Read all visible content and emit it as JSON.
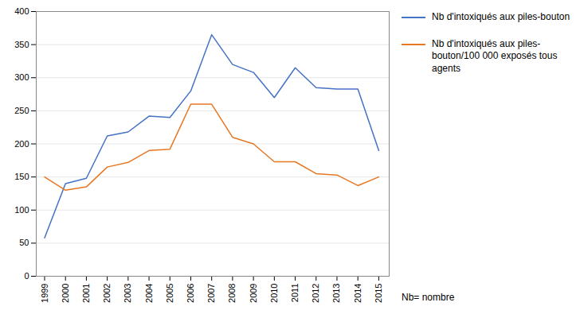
{
  "chart_data": {
    "type": "line",
    "x": [
      1999,
      2000,
      2001,
      2002,
      2003,
      2004,
      2005,
      2006,
      2007,
      2008,
      2009,
      2010,
      2011,
      2012,
      2013,
      2014,
      2015
    ],
    "series": [
      {
        "name": "Nb d'intoxiqués aux piles-bouton",
        "color": "#4472C4",
        "values": [
          58,
          140,
          148,
          212,
          218,
          242,
          240,
          280,
          365,
          320,
          308,
          270,
          315,
          285,
          283,
          283,
          190
        ]
      },
      {
        "name": "Nb d'intoxiqués aux piles-\nbouton/100 000 exposés tous\nagents",
        "color": "#E87722",
        "values": [
          150,
          130,
          135,
          165,
          172,
          190,
          192,
          260,
          260,
          210,
          200,
          173,
          173,
          155,
          153,
          137,
          150
        ]
      }
    ],
    "xlim": [
      1998.6,
      2015.5
    ],
    "xticks": [
      1999,
      2000,
      2001,
      2002,
      2003,
      2004,
      2005,
      2006,
      2007,
      2008,
      2009,
      2010,
      2011,
      2012,
      2013,
      2014,
      2015
    ],
    "ylim": [
      0,
      400
    ],
    "yticks": [
      0,
      50,
      100,
      150,
      200,
      250,
      300,
      350,
      400
    ],
    "grid": true,
    "legend": "right",
    "annotations": [
      "Nb= nombre"
    ]
  }
}
